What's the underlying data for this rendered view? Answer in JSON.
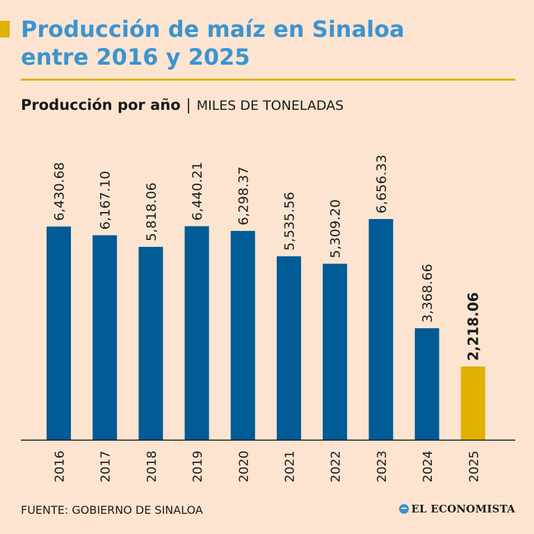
{
  "header": {
    "title_line1": "Producción de maíz en Sinaloa",
    "title_line2": "entre 2016 y 2025"
  },
  "subtitle": {
    "bold": "Producción por año",
    "separator": "|",
    "unit": "MILES DE TONELADAS"
  },
  "footer": {
    "source": "FUENTE: GOBIERNO DE SINALOA",
    "brand": "EL ECONOMISTA"
  },
  "colors": {
    "background": "#fce4d0",
    "bar": "#005b96",
    "highlight": "#e2b000",
    "title": "#3b94d0",
    "text": "#1a1a1a"
  },
  "chart_data": {
    "type": "bar",
    "title": "Producción por año",
    "ylabel": "MILES DE TONELADAS",
    "xlabel": "",
    "categories": [
      "2016",
      "2017",
      "2018",
      "2019",
      "2020",
      "2021",
      "2022",
      "2023",
      "2024",
      "2025"
    ],
    "values": [
      6430.68,
      6167.1,
      5818.06,
      6440.21,
      6298.37,
      5535.56,
      5309.2,
      6656.33,
      3368.66,
      2218.06
    ],
    "labels": [
      "6,430.68",
      "6,167.10",
      "5,818.06",
      "6,440.21",
      "6,298.37",
      "5,535.56",
      "5,309.20",
      "6,656.33",
      "3,368.66",
      "2,218.06"
    ],
    "highlight_index": 9,
    "ylim": [
      0,
      6656.33
    ],
    "grid": false
  }
}
